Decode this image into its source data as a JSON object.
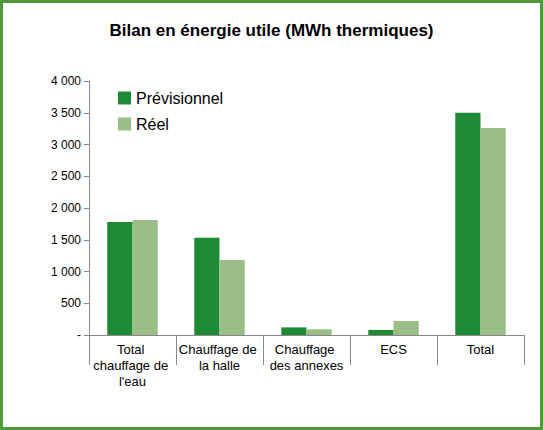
{
  "chart_data": {
    "type": "bar",
    "title": "Bilan en énergie utile (MWh thermiques)",
    "categories": [
      "Total chauffage de l'eau",
      "Chauffage de la halle",
      "Chauffage des annexes",
      "ECS",
      "Total"
    ],
    "series": [
      {
        "name": "Prévisionnel",
        "color": "#1e8a35",
        "values": [
          1780,
          1530,
          120,
          80,
          3500
        ]
      },
      {
        "name": "Réel",
        "color": "#9bbd86",
        "values": [
          1810,
          1180,
          90,
          220,
          3260
        ]
      }
    ],
    "ylim": [
      0,
      4000
    ],
    "yticks": [
      {
        "value": 0,
        "label": "-"
      },
      500,
      {
        "value": 1000,
        "label": "1 000"
      },
      {
        "value": 1500,
        "label": "1 500"
      },
      {
        "value": 2000,
        "label": "2 000"
      },
      {
        "value": 2500,
        "label": "2 500"
      },
      {
        "value": 3000,
        "label": "3 000"
      },
      {
        "value": 3500,
        "label": "3 500"
      },
      {
        "value": 4000,
        "label": "4 000"
      }
    ],
    "grid": false,
    "legend": "upper left",
    "data_labels": false
  }
}
